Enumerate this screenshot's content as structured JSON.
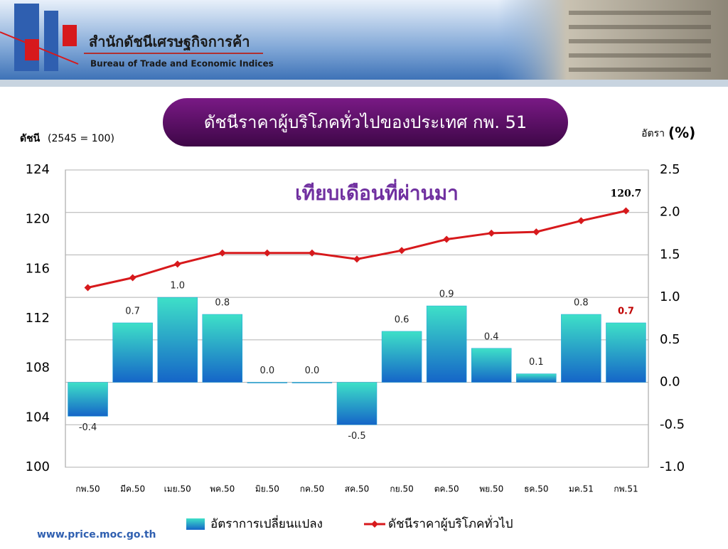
{
  "header": {
    "title": "สำนักดัชนีเศรษฐกิจการค้า",
    "subtitle": "Bureau of Trade and Economic Indices"
  },
  "footer": "www.price.moc.go.th",
  "chart_data": {
    "type": "combo",
    "title": "ดัชนีราคาผู้บริโภคทั่วไปของประเทศ กพ. 51",
    "subtitle": "เทียบเดือนที่ผ่านมา",
    "y_label": {
      "main": "ดัชนี",
      "note": "(2545 = 100)"
    },
    "y2_label": {
      "main": "อัตรา",
      "note": "(%)"
    },
    "categories": [
      "กพ.50",
      "มีค.50",
      "เมย.50",
      "พค.50",
      "มิย.50",
      "กค.50",
      "สค.50",
      "กย.50",
      "ตค.50",
      "พย.50",
      "ธค.50",
      "มค.51",
      "กพ.51"
    ],
    "series": [
      {
        "name": "อัตราการเปลี่ยนแปลง",
        "type": "bar",
        "axis": "y2",
        "color": "#1fa3d8",
        "values": [
          -0.4,
          0.7,
          1.0,
          0.8,
          0.0,
          0.0,
          -0.5,
          0.6,
          0.9,
          0.4,
          0.1,
          0.8,
          0.7
        ],
        "value_labels": [
          "-0.4",
          "0.7",
          "1.0",
          "0.8",
          "0.0",
          "0.0",
          "-0.5",
          "0.6",
          "0.9",
          "0.4",
          "0.1",
          "0.8",
          "0.7"
        ],
        "highlight_color": "#c00000"
      },
      {
        "name": "ดัชนีราคาผู้บริโภคทั่วไป",
        "type": "line",
        "axis": "y",
        "color": "#d7191c",
        "values": [
          114.5,
          115.3,
          116.4,
          117.3,
          117.3,
          117.3,
          116.8,
          117.5,
          118.4,
          118.9,
          119.0,
          119.9,
          120.7
        ]
      }
    ],
    "ylim": [
      100,
      124
    ],
    "yticks": [
      100,
      104,
      108,
      112,
      116,
      120,
      124
    ],
    "y2lim": [
      -1.0,
      2.5
    ],
    "y2ticks": [
      {
        "value": -1.0,
        "label": "-1.0"
      },
      -0.5,
      {
        "value": 0.0,
        "label": "0.0"
      },
      0.5,
      {
        "value": 1.0,
        "label": "1.0"
      },
      1.5,
      {
        "value": 2.0,
        "label": "2.0"
      },
      2.5
    ],
    "grid": true
  }
}
